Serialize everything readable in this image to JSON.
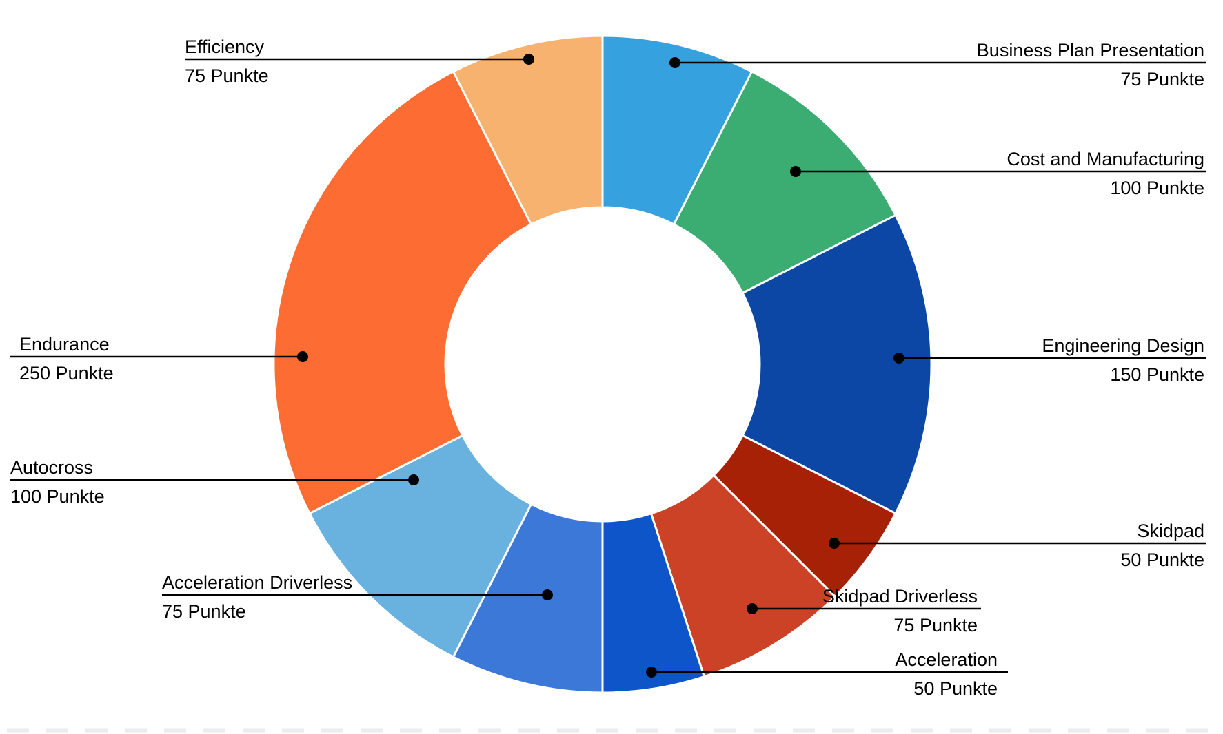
{
  "chart_data": {
    "type": "pie",
    "subtype": "donut",
    "title": "",
    "unit": "Punkte",
    "total_points": 1000,
    "direction": "clockwise",
    "start_angle_deg": 0,
    "legend_position": "none",
    "grid": false,
    "segments": [
      {
        "label": "Business Plan Presentation",
        "value": 75,
        "value_label": "75 Punkte",
        "color": "#35A1DF",
        "label_side": "right"
      },
      {
        "label": "Cost and Manufacturing",
        "value": 100,
        "value_label": "100 Punkte",
        "color": "#3BAD72",
        "label_side": "right"
      },
      {
        "label": "Engineering Design",
        "value": 150,
        "value_label": "150 Punkte",
        "color": "#0C47A6",
        "label_side": "right"
      },
      {
        "label": "Skidpad",
        "value": 50,
        "value_label": "50 Punkte",
        "color": "#A62105",
        "label_side": "right"
      },
      {
        "label": "Skidpad Driverless",
        "value": 75,
        "value_label": "75 Punkte",
        "color": "#CC4227",
        "label_side": "right"
      },
      {
        "label": "Acceleration",
        "value": 50,
        "value_label": "50 Punkte",
        "color": "#0E55CA",
        "label_side": "right"
      },
      {
        "label": "Acceleration Driverless",
        "value": 75,
        "value_label": "75 Punkte",
        "color": "#3C78D8",
        "label_side": "left"
      },
      {
        "label": "Autocross",
        "value": 100,
        "value_label": "100 Punkte",
        "color": "#69B1DE",
        "label_side": "left"
      },
      {
        "label": "Endurance",
        "value": 250,
        "value_label": "250 Punkte",
        "color": "#FD6D33",
        "label_side": "left"
      },
      {
        "label": "Efficiency",
        "value": 75,
        "value_label": "75 Punkte",
        "color": "#F6B26E",
        "label_side": "left"
      }
    ]
  },
  "colors": {
    "background": "#FFFFFF",
    "leader_line": "#000000",
    "label_text": "#000000",
    "slice_divider": "#FFFFFF",
    "bottom_dashed_divider": "#E9EDEE"
  }
}
